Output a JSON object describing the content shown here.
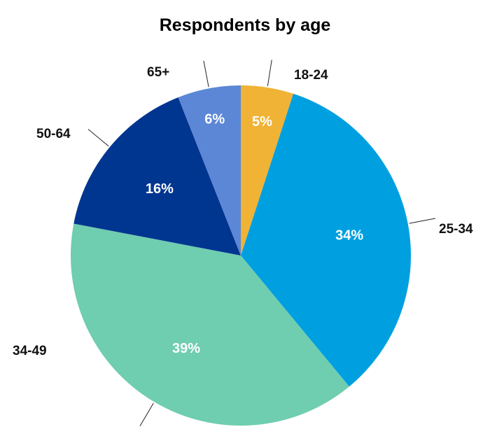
{
  "chart_data": {
    "type": "pie",
    "title": "Respondents by age",
    "slices": [
      {
        "label": "18-24",
        "value": 5,
        "display": "5%",
        "color": "#F0B335"
      },
      {
        "label": "25-34",
        "value": 34,
        "display": "34%",
        "color": "#00A0E0"
      },
      {
        "label": "34-49",
        "value": 39,
        "display": "39%",
        "color": "#6FCDB0"
      },
      {
        "label": "50-64",
        "value": 16,
        "display": "16%",
        "color": "#003590"
      },
      {
        "label": "65+",
        "value": 6,
        "display": "6%",
        "color": "#5B87D6"
      }
    ],
    "start_angle": "12 o'clock",
    "direction": "clockwise",
    "legend": "none",
    "labels": "outside with leader lines"
  }
}
